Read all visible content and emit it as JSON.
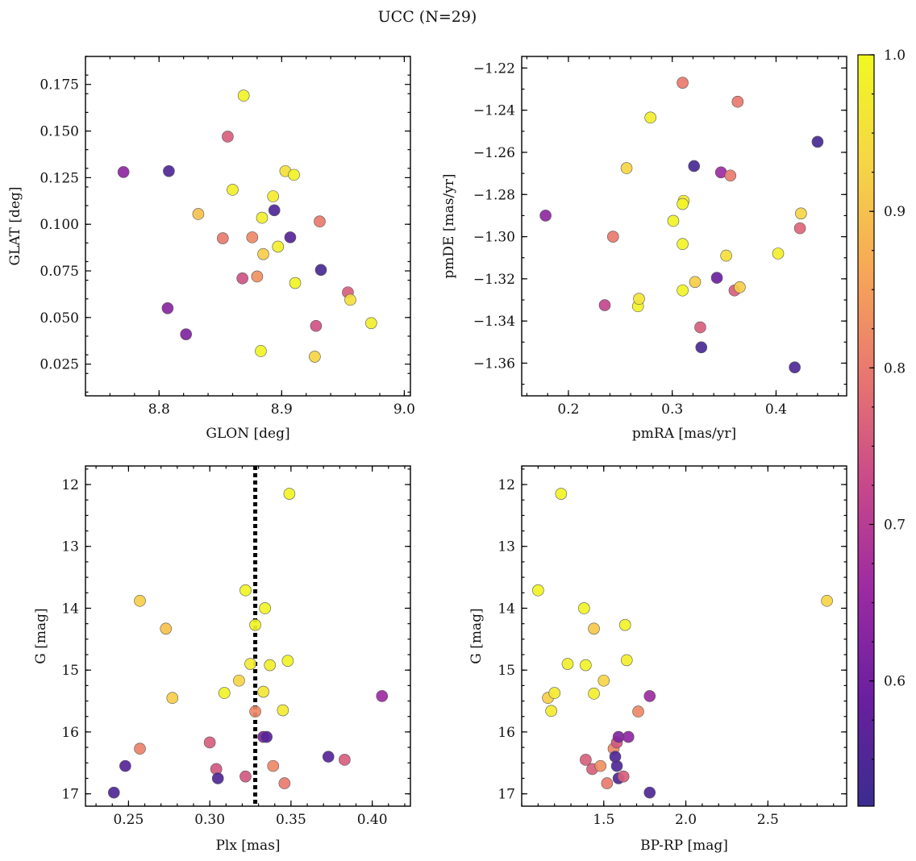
{
  "figure": {
    "title": "UCC (N=29)"
  },
  "colors": {
    "colormap": "plasma",
    "plasma_stops": [
      "#3a2d8f",
      "#6a1f9f",
      "#9b2aa3",
      "#c8488a",
      "#e87670",
      "#f7a857",
      "#f6d645",
      "#f0f921"
    ]
  },
  "colorbar": {
    "min": 0.52,
    "max": 1.0,
    "ticks": [
      0.6,
      0.7,
      0.8,
      0.9,
      1.0
    ],
    "tick_labels": [
      "0.6",
      "0.7",
      "0.8",
      "0.9",
      "1.0"
    ]
  },
  "chart_data": [
    {
      "id": "glon-glat",
      "type": "scatter",
      "xlabel": "GLON [deg]",
      "ylabel": "GLAT [deg]",
      "xlim": [
        8.74,
        9.005
      ],
      "ylim": [
        0.008,
        0.19
      ],
      "xticks": [
        8.8,
        8.9,
        9.0
      ],
      "xtick_labels": [
        "8.8",
        "8.9",
        "9.0"
      ],
      "yticks": [
        0.025,
        0.05,
        0.075,
        0.1,
        0.125,
        0.15,
        0.175
      ],
      "ytick_labels": [
        "0.025",
        "0.050",
        "0.075",
        "0.100",
        "0.125",
        "0.150",
        "0.175"
      ],
      "points": [
        {
          "x": 8.771,
          "y": 0.128,
          "c": 0.64
        },
        {
          "x": 8.808,
          "y": 0.1285,
          "c": 0.55
        },
        {
          "x": 8.807,
          "y": 0.055,
          "c": 0.63
        },
        {
          "x": 8.822,
          "y": 0.041,
          "c": 0.62
        },
        {
          "x": 8.832,
          "y": 0.1055,
          "c": 0.9
        },
        {
          "x": 8.852,
          "y": 0.0925,
          "c": 0.8
        },
        {
          "x": 8.856,
          "y": 0.147,
          "c": 0.76
        },
        {
          "x": 8.86,
          "y": 0.1185,
          "c": 0.98
        },
        {
          "x": 8.868,
          "y": 0.071,
          "c": 0.74
        },
        {
          "x": 8.869,
          "y": 0.169,
          "c": 0.99
        },
        {
          "x": 8.876,
          "y": 0.093,
          "c": 0.82
        },
        {
          "x": 8.88,
          "y": 0.072,
          "c": 0.83
        },
        {
          "x": 8.883,
          "y": 0.032,
          "c": 0.99
        },
        {
          "x": 8.884,
          "y": 0.1035,
          "c": 0.98
        },
        {
          "x": 8.885,
          "y": 0.084,
          "c": 0.92
        },
        {
          "x": 8.893,
          "y": 0.115,
          "c": 0.97
        },
        {
          "x": 8.894,
          "y": 0.1075,
          "c": 0.55
        },
        {
          "x": 8.897,
          "y": 0.088,
          "c": 0.98
        },
        {
          "x": 8.903,
          "y": 0.1285,
          "c": 0.95
        },
        {
          "x": 8.907,
          "y": 0.093,
          "c": 0.56
        },
        {
          "x": 8.91,
          "y": 0.1265,
          "c": 0.99
        },
        {
          "x": 8.911,
          "y": 0.0685,
          "c": 0.99
        },
        {
          "x": 8.927,
          "y": 0.029,
          "c": 0.93
        },
        {
          "x": 8.928,
          "y": 0.0455,
          "c": 0.74
        },
        {
          "x": 8.931,
          "y": 0.1015,
          "c": 0.8
        },
        {
          "x": 8.932,
          "y": 0.0755,
          "c": 0.54
        },
        {
          "x": 8.954,
          "y": 0.0635,
          "c": 0.76
        },
        {
          "x": 8.956,
          "y": 0.0595,
          "c": 0.95
        },
        {
          "x": 8.973,
          "y": 0.047,
          "c": 0.98
        }
      ]
    },
    {
      "id": "pmra-pmde",
      "type": "scatter",
      "xlabel": "pmRA [mas/yr]",
      "ylabel": "pmDE [mas/yr]",
      "xlim": [
        0.155,
        0.468
      ],
      "ylim": [
        -1.3755,
        -1.2145
      ],
      "xticks": [
        0.2,
        0.3,
        0.4
      ],
      "xtick_labels": [
        "0.2",
        "0.3",
        "0.4"
      ],
      "yticks": [
        -1.22,
        -1.24,
        -1.26,
        -1.28,
        -1.3,
        -1.32,
        -1.34,
        -1.36
      ],
      "ytick_labels": [
        "−1.22",
        "−1.24",
        "−1.26",
        "−1.28",
        "−1.30",
        "−1.32",
        "−1.34",
        "−1.36"
      ],
      "points": [
        {
          "x": 0.178,
          "y": -1.29,
          "c": 0.64
        },
        {
          "x": 0.235,
          "y": -1.3325,
          "c": 0.72
        },
        {
          "x": 0.243,
          "y": -1.3,
          "c": 0.8
        },
        {
          "x": 0.256,
          "y": -1.2675,
          "c": 0.93
        },
        {
          "x": 0.267,
          "y": -1.333,
          "c": 0.99
        },
        {
          "x": 0.268,
          "y": -1.3295,
          "c": 0.96
        },
        {
          "x": 0.279,
          "y": -1.2435,
          "c": 0.98
        },
        {
          "x": 0.301,
          "y": -1.2925,
          "c": 0.99
        },
        {
          "x": 0.31,
          "y": -1.227,
          "c": 0.8
        },
        {
          "x": 0.31,
          "y": -1.3035,
          "c": 0.99
        },
        {
          "x": 0.31,
          "y": -1.3255,
          "c": 0.99
        },
        {
          "x": 0.311,
          "y": -1.283,
          "c": 0.97
        },
        {
          "x": 0.31,
          "y": -1.2845,
          "c": 0.99
        },
        {
          "x": 0.321,
          "y": -1.2665,
          "c": 0.54
        },
        {
          "x": 0.322,
          "y": -1.3215,
          "c": 0.92
        },
        {
          "x": 0.327,
          "y": -1.343,
          "c": 0.76
        },
        {
          "x": 0.328,
          "y": -1.3525,
          "c": 0.54
        },
        {
          "x": 0.343,
          "y": -1.3195,
          "c": 0.59
        },
        {
          "x": 0.347,
          "y": -1.2695,
          "c": 0.66
        },
        {
          "x": 0.352,
          "y": -1.309,
          "c": 0.95
        },
        {
          "x": 0.356,
          "y": -1.271,
          "c": 0.8
        },
        {
          "x": 0.36,
          "y": -1.3255,
          "c": 0.76
        },
        {
          "x": 0.363,
          "y": -1.236,
          "c": 0.8
        },
        {
          "x": 0.365,
          "y": -1.324,
          "c": 0.92
        },
        {
          "x": 0.402,
          "y": -1.308,
          "c": 0.98
        },
        {
          "x": 0.418,
          "y": -1.362,
          "c": 0.55
        },
        {
          "x": 0.423,
          "y": -1.296,
          "c": 0.77
        },
        {
          "x": 0.424,
          "y": -1.289,
          "c": 0.93
        },
        {
          "x": 0.44,
          "y": -1.255,
          "c": 0.54
        }
      ]
    },
    {
      "id": "plx-g",
      "type": "scatter",
      "xlabel": "Plx [mas]",
      "ylabel": "G [mag]",
      "xlim": [
        0.2235,
        0.4235
      ],
      "ylim": [
        17.2,
        11.7
      ],
      "y_inverted": true,
      "vline": {
        "x": 0.328,
        "style": "dotted",
        "color": "#000000"
      },
      "xticks": [
        0.25,
        0.3,
        0.35,
        0.4
      ],
      "xtick_labels": [
        "0.25",
        "0.30",
        "0.35",
        "0.40"
      ],
      "yticks": [
        12,
        13,
        14,
        15,
        16,
        17
      ],
      "ytick_labels": [
        "12",
        "13",
        "14",
        "15",
        "16",
        "17"
      ],
      "points": [
        {
          "x": 0.241,
          "y": 16.98,
          "c": 0.55
        },
        {
          "x": 0.248,
          "y": 16.55,
          "c": 0.56
        },
        {
          "x": 0.257,
          "y": 13.88,
          "c": 0.92
        },
        {
          "x": 0.257,
          "y": 16.27,
          "c": 0.81
        },
        {
          "x": 0.273,
          "y": 14.33,
          "c": 0.9
        },
        {
          "x": 0.277,
          "y": 15.45,
          "c": 0.92
        },
        {
          "x": 0.3,
          "y": 16.17,
          "c": 0.76
        },
        {
          "x": 0.304,
          "y": 16.6,
          "c": 0.75
        },
        {
          "x": 0.305,
          "y": 16.75,
          "c": 0.55
        },
        {
          "x": 0.309,
          "y": 15.37,
          "c": 0.99
        },
        {
          "x": 0.318,
          "y": 15.17,
          "c": 0.93
        },
        {
          "x": 0.322,
          "y": 13.71,
          "c": 0.99
        },
        {
          "x": 0.322,
          "y": 16.72,
          "c": 0.75
        },
        {
          "x": 0.325,
          "y": 14.9,
          "c": 0.97
        },
        {
          "x": 0.328,
          "y": 14.27,
          "c": 0.99
        },
        {
          "x": 0.328,
          "y": 15.67,
          "c": 0.82
        },
        {
          "x": 0.333,
          "y": 15.35,
          "c": 0.96
        },
        {
          "x": 0.333,
          "y": 16.08,
          "c": 0.62
        },
        {
          "x": 0.334,
          "y": 14.0,
          "c": 0.99
        },
        {
          "x": 0.335,
          "y": 16.08,
          "c": 0.56
        },
        {
          "x": 0.337,
          "y": 14.92,
          "c": 0.98
        },
        {
          "x": 0.339,
          "y": 16.55,
          "c": 0.82
        },
        {
          "x": 0.345,
          "y": 15.65,
          "c": 0.97
        },
        {
          "x": 0.346,
          "y": 16.83,
          "c": 0.8
        },
        {
          "x": 0.348,
          "y": 14.85,
          "c": 0.99
        },
        {
          "x": 0.349,
          "y": 12.15,
          "c": 0.99
        },
        {
          "x": 0.373,
          "y": 16.4,
          "c": 0.56
        },
        {
          "x": 0.383,
          "y": 16.45,
          "c": 0.76
        },
        {
          "x": 0.406,
          "y": 15.42,
          "c": 0.66
        }
      ]
    },
    {
      "id": "bprp-g",
      "type": "scatter",
      "xlabel": "BP-RP [mag]",
      "ylabel": "G [mag]",
      "xlim": [
        1.0,
        2.98
      ],
      "ylim": [
        17.2,
        11.7
      ],
      "y_inverted": true,
      "xticks": [
        1.5,
        2.0,
        2.5
      ],
      "xtick_labels": [
        "1.5",
        "2.0",
        "2.5"
      ],
      "yticks": [
        12,
        13,
        14,
        15,
        16,
        17
      ],
      "ytick_labels": [
        "12",
        "13",
        "14",
        "15",
        "16",
        "17"
      ],
      "points": [
        {
          "x": 1.1,
          "y": 13.71,
          "c": 0.99
        },
        {
          "x": 1.16,
          "y": 15.45,
          "c": 0.92
        },
        {
          "x": 1.18,
          "y": 15.66,
          "c": 0.97
        },
        {
          "x": 1.2,
          "y": 15.37,
          "c": 0.97
        },
        {
          "x": 1.24,
          "y": 12.15,
          "c": 0.99
        },
        {
          "x": 1.28,
          "y": 14.9,
          "c": 0.98
        },
        {
          "x": 1.38,
          "y": 14.0,
          "c": 0.99
        },
        {
          "x": 1.39,
          "y": 14.92,
          "c": 0.99
        },
        {
          "x": 1.39,
          "y": 16.45,
          "c": 0.76
        },
        {
          "x": 1.43,
          "y": 16.6,
          "c": 0.76
        },
        {
          "x": 1.44,
          "y": 14.33,
          "c": 0.91
        },
        {
          "x": 1.44,
          "y": 15.38,
          "c": 0.98
        },
        {
          "x": 1.48,
          "y": 16.55,
          "c": 0.83
        },
        {
          "x": 1.5,
          "y": 15.17,
          "c": 0.93
        },
        {
          "x": 1.52,
          "y": 16.83,
          "c": 0.8
        },
        {
          "x": 1.56,
          "y": 16.27,
          "c": 0.82
        },
        {
          "x": 1.57,
          "y": 16.4,
          "c": 0.55
        },
        {
          "x": 1.58,
          "y": 16.55,
          "c": 0.55
        },
        {
          "x": 1.58,
          "y": 16.17,
          "c": 0.75
        },
        {
          "x": 1.59,
          "y": 16.08,
          "c": 0.62
        },
        {
          "x": 1.59,
          "y": 16.75,
          "c": 0.55
        },
        {
          "x": 1.62,
          "y": 16.72,
          "c": 0.76
        },
        {
          "x": 1.63,
          "y": 14.27,
          "c": 0.99
        },
        {
          "x": 1.64,
          "y": 14.84,
          "c": 0.98
        },
        {
          "x": 1.65,
          "y": 16.08,
          "c": 0.64
        },
        {
          "x": 1.71,
          "y": 15.67,
          "c": 0.82
        },
        {
          "x": 1.78,
          "y": 15.42,
          "c": 0.66
        },
        {
          "x": 1.78,
          "y": 16.98,
          "c": 0.55
        },
        {
          "x": 2.86,
          "y": 13.88,
          "c": 0.93
        }
      ]
    }
  ]
}
